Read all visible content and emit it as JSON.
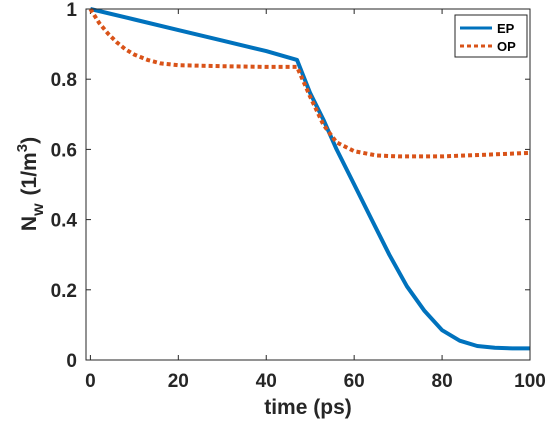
{
  "chart_data": {
    "type": "line",
    "xlabel": "time (ps)",
    "ylabel_main": "N",
    "ylabel_sub": "w",
    "ylabel_unit": "(1/m",
    "ylabel_sup": "3",
    "ylabel_close": ")",
    "xlim": [
      -1,
      100
    ],
    "ylim": [
      0,
      1
    ],
    "x_ticks": [
      0,
      20,
      40,
      60,
      80,
      100
    ],
    "x_tick_labels": [
      "0",
      "20",
      "40",
      "60",
      "80",
      "100"
    ],
    "y_ticks": [
      0,
      0.2,
      0.4,
      0.6,
      0.8,
      1
    ],
    "y_tick_labels": [
      "0",
      "0.2",
      "0.4",
      "0.6",
      "0.8",
      "1"
    ],
    "grid": false,
    "legend_position": "top-right",
    "series": [
      {
        "name": "EP",
        "color": "#0072BD",
        "style": "solid",
        "points": [
          [
            0,
            1.0
          ],
          [
            10,
            0.97
          ],
          [
            20,
            0.94
          ],
          [
            30,
            0.91
          ],
          [
            40,
            0.88
          ],
          [
            47,
            0.855
          ],
          [
            50,
            0.76
          ],
          [
            53,
            0.685
          ],
          [
            56,
            0.6
          ],
          [
            60,
            0.5
          ],
          [
            64,
            0.4
          ],
          [
            68,
            0.3
          ],
          [
            72,
            0.21
          ],
          [
            76,
            0.14
          ],
          [
            80,
            0.085
          ],
          [
            84,
            0.055
          ],
          [
            88,
            0.04
          ],
          [
            92,
            0.035
          ],
          [
            96,
            0.033
          ],
          [
            100,
            0.033
          ]
        ]
      },
      {
        "name": "OP",
        "color": "#D95319",
        "style": "dotted",
        "points": [
          [
            0,
            1.0
          ],
          [
            2,
            0.96
          ],
          [
            4,
            0.93
          ],
          [
            6,
            0.905
          ],
          [
            8,
            0.885
          ],
          [
            10,
            0.87
          ],
          [
            13,
            0.855
          ],
          [
            16,
            0.845
          ],
          [
            20,
            0.84
          ],
          [
            30,
            0.837
          ],
          [
            40,
            0.835
          ],
          [
            47,
            0.835
          ],
          [
            50,
            0.75
          ],
          [
            53,
            0.67
          ],
          [
            56,
            0.62
          ],
          [
            60,
            0.595
          ],
          [
            65,
            0.583
          ],
          [
            70,
            0.58
          ],
          [
            80,
            0.58
          ],
          [
            90,
            0.585
          ],
          [
            100,
            0.59
          ]
        ]
      }
    ]
  }
}
